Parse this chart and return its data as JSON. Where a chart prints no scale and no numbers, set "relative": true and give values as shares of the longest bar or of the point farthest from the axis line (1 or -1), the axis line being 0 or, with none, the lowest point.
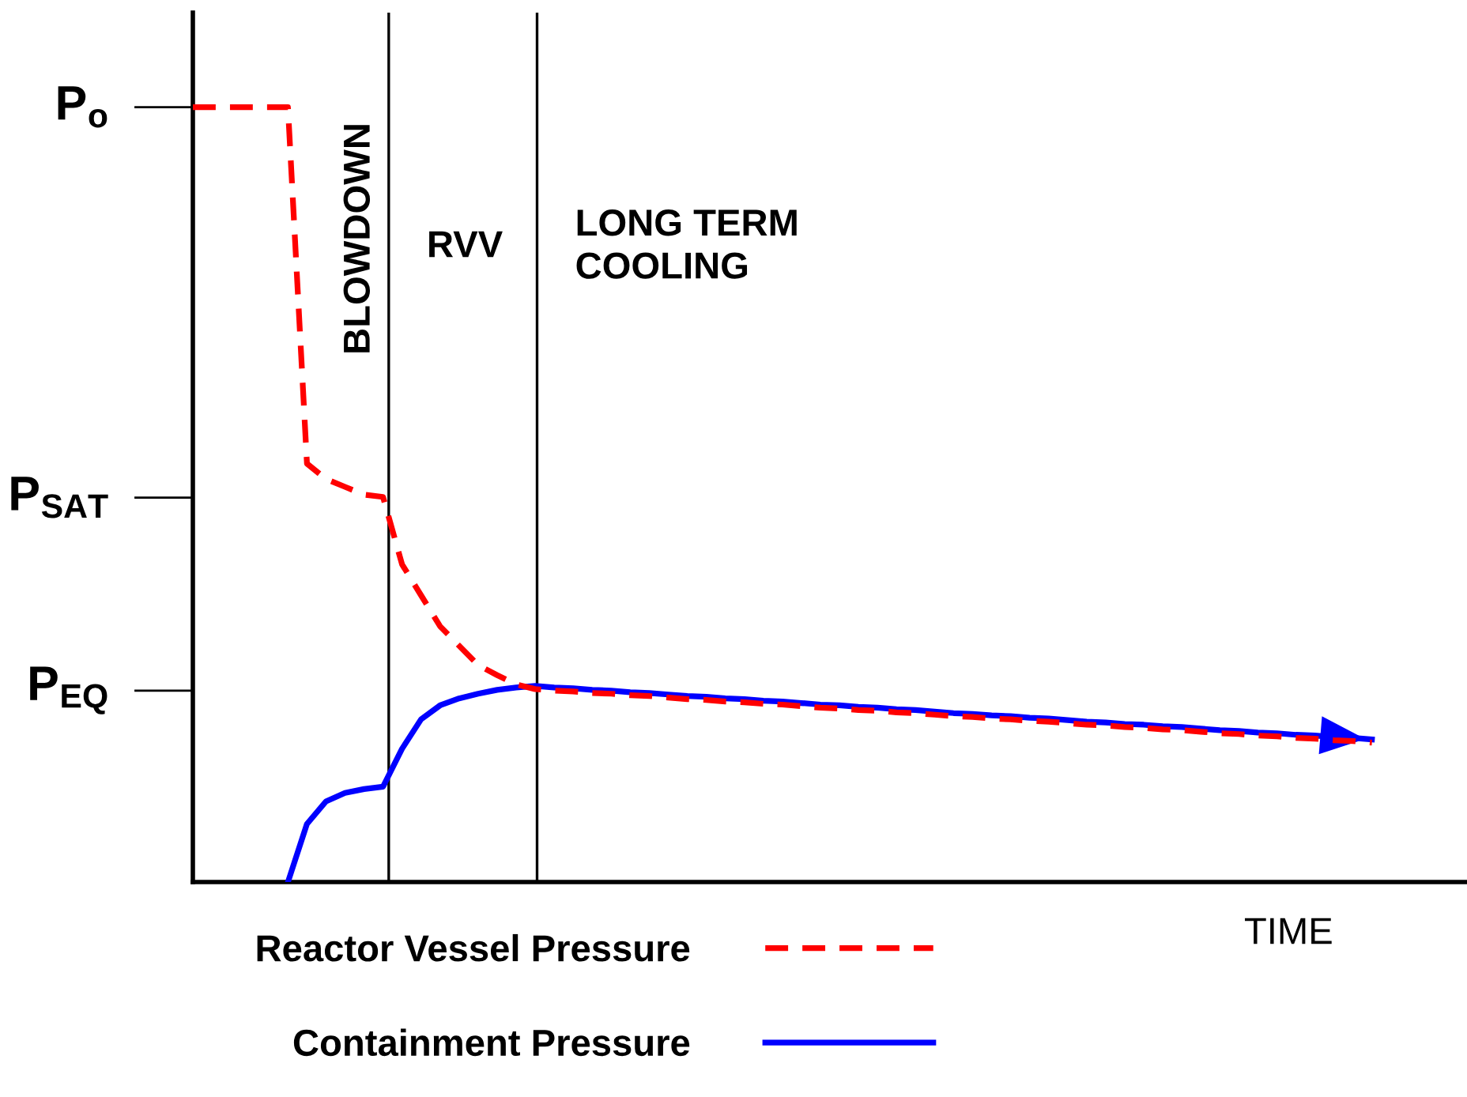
{
  "chart_data": {
    "type": "line",
    "xlabel": "TIME",
    "relative": true,
    "categories": [
      null,
      null,
      null,
      null,
      null,
      null,
      null,
      null,
      null,
      null,
      null,
      null,
      null,
      null,
      null,
      null,
      null,
      null,
      null,
      null,
      null,
      null,
      null,
      null,
      null,
      null,
      null,
      null,
      null,
      null,
      null,
      null,
      null,
      null,
      null,
      null,
      null,
      null,
      null,
      null,
      null,
      null,
      null,
      null,
      null,
      null,
      null,
      null,
      null,
      null,
      null,
      null,
      null,
      null,
      null,
      null,
      null,
      null,
      null,
      null,
      null,
      null,
      null
    ],
    "legend": "bottom",
    "ref_lines": [
      {
        "axis": "y",
        "value": 1.0,
        "label": "P$_{o}$",
        "color": "#000000"
      },
      {
        "axis": "y",
        "value": 0.496,
        "label": "P$_{SAT}$",
        "color": "#000000"
      },
      {
        "axis": "y",
        "value": 0.247,
        "label": "P$_{EQ}$",
        "color": "#000000"
      }
    ],
    "annotations": [
      "BLOWDOWN",
      "RVV",
      "LONG TERM\nCOOLING"
    ],
    "series": [
      {
        "name": "Reactor Vessel Pressure",
        "color": "#ff0000",
        "line_style": "dashed",
        "values": [
          1.0,
          1.0,
          1.0,
          1.0,
          1.0,
          1.0,
          0.54,
          0.52,
          0.51,
          0.5,
          0.497,
          0.41,
          0.37,
          0.33,
          0.305,
          0.28,
          0.267,
          0.255,
          0.249,
          0.247,
          0.246,
          0.244,
          0.243,
          0.241,
          0.24,
          0.238,
          0.236,
          0.235,
          0.233,
          0.232,
          0.23,
          0.229,
          0.227,
          0.225,
          0.224,
          0.222,
          0.221,
          0.219,
          0.218,
          0.216,
          0.214,
          0.213,
          0.211,
          0.21,
          0.208,
          0.207,
          0.205,
          0.203,
          0.202,
          0.2,
          0.199,
          0.197,
          0.196,
          0.194,
          0.192,
          0.191,
          0.189,
          0.188,
          0.186,
          0.185,
          0.183,
          0.182,
          0.18
        ]
      },
      {
        "name": "Containment Pressure",
        "color": "#0000ff",
        "line_style": "solid",
        "values": [
          null,
          null,
          null,
          null,
          null,
          0,
          0.075,
          0.104,
          0.115,
          0.12,
          0.123,
          0.172,
          0.21,
          0.228,
          0.237,
          0.243,
          0.248,
          0.251,
          0.253,
          0.251,
          0.25,
          0.248,
          0.247,
          0.245,
          0.244,
          0.242,
          0.24,
          0.239,
          0.237,
          0.236,
          0.234,
          0.233,
          0.231,
          0.229,
          0.228,
          0.226,
          0.225,
          0.223,
          0.222,
          0.22,
          0.218,
          0.217,
          0.215,
          0.214,
          0.212,
          0.211,
          0.209,
          0.207,
          0.206,
          0.204,
          0.203,
          0.201,
          0.2,
          0.198,
          0.196,
          0.195,
          0.193,
          0.192,
          0.19,
          0.189,
          0.187,
          0.186,
          0.184
        ]
      }
    ]
  }
}
